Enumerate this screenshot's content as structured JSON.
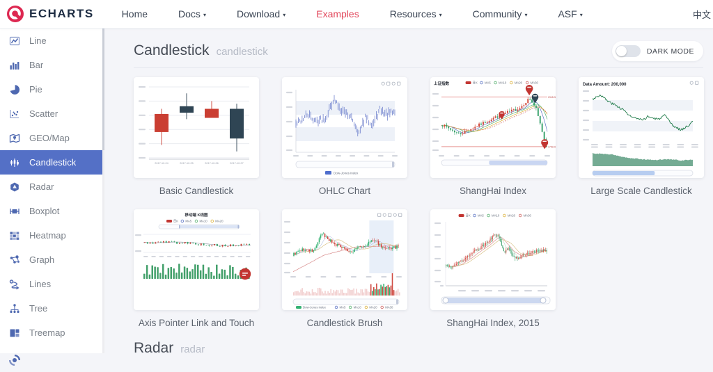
{
  "nav": {
    "logo_text": "ECHARTS",
    "items": [
      {
        "label": "Home",
        "dropdown": false,
        "active": false
      },
      {
        "label": "Docs",
        "dropdown": true,
        "active": false
      },
      {
        "label": "Download",
        "dropdown": true,
        "active": false
      },
      {
        "label": "Examples",
        "dropdown": false,
        "active": true
      },
      {
        "label": "Resources",
        "dropdown": true,
        "active": false
      },
      {
        "label": "Community",
        "dropdown": true,
        "active": false
      },
      {
        "label": "ASF",
        "dropdown": true,
        "active": false
      }
    ],
    "lang": "中文"
  },
  "sidebar": {
    "items": [
      {
        "label": "Line",
        "icon": "line",
        "active": false
      },
      {
        "label": "Bar",
        "icon": "bar",
        "active": false
      },
      {
        "label": "Pie",
        "icon": "pie",
        "active": false
      },
      {
        "label": "Scatter",
        "icon": "scatter",
        "active": false
      },
      {
        "label": "GEO/Map",
        "icon": "geomap",
        "active": false
      },
      {
        "label": "Candlestick",
        "icon": "candlestick",
        "active": true
      },
      {
        "label": "Radar",
        "icon": "radar",
        "active": false
      },
      {
        "label": "Boxplot",
        "icon": "boxplot",
        "active": false
      },
      {
        "label": "Heatmap",
        "icon": "heatmap",
        "active": false
      },
      {
        "label": "Graph",
        "icon": "graph",
        "active": false
      },
      {
        "label": "Lines",
        "icon": "lines",
        "active": false
      },
      {
        "label": "Tree",
        "icon": "tree",
        "active": false
      },
      {
        "label": "Treemap",
        "icon": "treemap",
        "active": false
      }
    ],
    "partial_item_icon": "sunburst"
  },
  "page": {
    "section_title": "Candlestick",
    "section_subtitle": "candlestick",
    "dark_mode_label": "DARK MODE",
    "next_section_title": "Radar",
    "next_section_subtitle": "radar"
  },
  "cards": [
    {
      "caption": "Basic Candlestick",
      "chart": {
        "type": "basic",
        "categories": [
          "2017-10-24",
          "2017-10-25",
          "2017-10-26",
          "2017-10-27"
        ],
        "values": [
          [
            20,
            34,
            10,
            38
          ],
          [
            40,
            35,
            30,
            50
          ],
          [
            31,
            38,
            33,
            44
          ],
          [
            38,
            15,
            5,
            42
          ]
        ],
        "up_color": "#ca3e32",
        "down_color": "#2f4554",
        "ymax": 55
      }
    },
    {
      "caption": "OHLC Chart",
      "chart": {
        "type": "ohlc",
        "seed": 42,
        "color": "#5b6fc6",
        "legend": "Dow-Jones index",
        "shape": [
          [
            0,
            0.45
          ],
          [
            0.12,
            0.6
          ],
          [
            0.2,
            0.5
          ],
          [
            0.3,
            0.55
          ],
          [
            0.38,
            0.85
          ],
          [
            0.45,
            0.7
          ],
          [
            0.52,
            0.62
          ],
          [
            0.58,
            0.5
          ],
          [
            0.64,
            0.3
          ],
          [
            0.7,
            0.55
          ],
          [
            0.78,
            0.45
          ],
          [
            0.85,
            0.68
          ],
          [
            0.92,
            0.6
          ],
          [
            1,
            0.65
          ]
        ]
      }
    },
    {
      "caption": "ShangHai Index",
      "chart": {
        "type": "shanghai",
        "seed": 7,
        "title": "上证指数",
        "legend": [
          "日K",
          "MA5",
          "MA10",
          "MA20",
          "MA30"
        ],
        "hline_top": "2318.08",
        "hline_bottom": "1753.06",
        "up_color": "#cf4436",
        "down_color": "#37a16b",
        "ma_colors": [
          "#5b73c4",
          "#55b06e",
          "#dcb23c",
          "#cf6563"
        ],
        "shape": [
          [
            0,
            0.45
          ],
          [
            0.18,
            0.28
          ],
          [
            0.35,
            0.42
          ],
          [
            0.5,
            0.55
          ],
          [
            0.75,
            0.72
          ],
          [
            0.84,
            0.88
          ],
          [
            0.9,
            0.72
          ],
          [
            1,
            0.08
          ]
        ]
      }
    },
    {
      "caption": "Large Scale Candlestick",
      "chart": {
        "type": "largescale",
        "seed": 3,
        "title": "Data Amount: 200,000",
        "color": "#1e7a48",
        "volume_color": "#74ab93",
        "shape": [
          [
            0,
            0.82
          ],
          [
            0.08,
            0.9
          ],
          [
            0.15,
            0.78
          ],
          [
            0.3,
            0.62
          ],
          [
            0.38,
            0.48
          ],
          [
            0.5,
            0.4
          ],
          [
            0.55,
            0.48
          ],
          [
            0.65,
            0.42
          ],
          [
            0.72,
            0.5
          ],
          [
            0.8,
            0.3
          ],
          [
            0.88,
            0.22
          ],
          [
            0.94,
            0.28
          ],
          [
            1,
            0.38
          ]
        ],
        "volume_shape": [
          [
            0,
            0.85
          ],
          [
            0.2,
            0.75
          ],
          [
            0.35,
            0.55
          ],
          [
            0.5,
            0.45
          ],
          [
            0.6,
            0.4
          ],
          [
            0.75,
            0.45
          ],
          [
            0.9,
            0.38
          ],
          [
            1,
            0.42
          ]
        ]
      }
    },
    {
      "caption": "Axis Pointer Link and Touch",
      "chart": {
        "type": "mobile",
        "seed": 5,
        "title": "移动端 K线图",
        "legend": [
          "日K",
          "MA5",
          "MA10",
          "MA20"
        ],
        "up_color": "#c54b42",
        "down_color": "#3da26e",
        "volume_color": "#43a06b",
        "shape": [
          [
            0,
            0.52
          ],
          [
            0.25,
            0.58
          ],
          [
            0.45,
            0.5
          ],
          [
            0.65,
            0.4
          ],
          [
            0.8,
            0.36
          ],
          [
            0.93,
            0.42
          ],
          [
            1,
            0.4
          ]
        ]
      }
    },
    {
      "caption": "Candlestick Brush",
      "chart": {
        "type": "brush",
        "seed": 9,
        "legend": [
          "Dow-Jones index",
          "MA5",
          "MA10",
          "MA20",
          "MA30"
        ],
        "up_color": "#35b273",
        "down_color": "#cf4a42",
        "ma_colors": [
          "#9aa8d8",
          "#d9c289",
          "#dfa1a1"
        ],
        "shape": [
          [
            0,
            0.35
          ],
          [
            0.1,
            0.45
          ],
          [
            0.2,
            0.42
          ],
          [
            0.28,
            0.75
          ],
          [
            0.32,
            0.68
          ],
          [
            0.4,
            0.55
          ],
          [
            0.48,
            0.5
          ],
          [
            0.55,
            0.38
          ],
          [
            0.6,
            0.48
          ],
          [
            0.68,
            0.5
          ],
          [
            0.75,
            0.62
          ],
          [
            0.8,
            0.58
          ],
          [
            0.88,
            0.45
          ],
          [
            1,
            0.5
          ]
        ],
        "brush_range": [
          0.72,
          0.95
        ]
      }
    },
    {
      "caption": "ShangHai Index, 2015",
      "chart": {
        "type": "sh2015",
        "seed": 11,
        "legend": [
          "日K",
          "MA5",
          "MA10",
          "MA20",
          "MA30"
        ],
        "up_color": "#cf4a42",
        "down_color": "#3da26e",
        "shape": [
          [
            0,
            0.32
          ],
          [
            0.05,
            0.28
          ],
          [
            0.15,
            0.38
          ],
          [
            0.3,
            0.55
          ],
          [
            0.42,
            0.68
          ],
          [
            0.5,
            0.82
          ],
          [
            0.54,
            0.72
          ],
          [
            0.58,
            0.52
          ],
          [
            0.62,
            0.6
          ],
          [
            0.66,
            0.48
          ],
          [
            0.72,
            0.42
          ],
          [
            0.78,
            0.5
          ],
          [
            0.85,
            0.52
          ],
          [
            0.92,
            0.55
          ],
          [
            1,
            0.56
          ]
        ]
      }
    }
  ]
}
